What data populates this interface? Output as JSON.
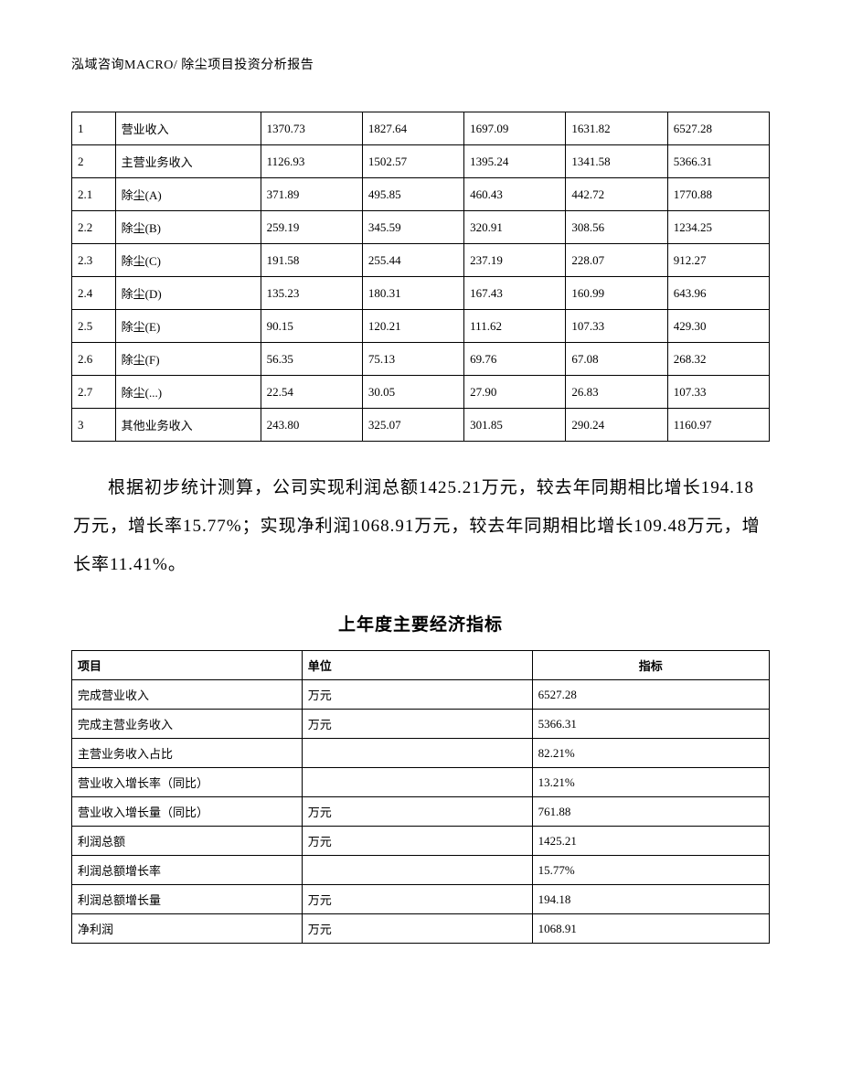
{
  "header": "泓域咨询MACRO/   除尘项目投资分析报告",
  "table1": {
    "rows": [
      [
        "1",
        "营业收入",
        "1370.73",
        "1827.64",
        "1697.09",
        "1631.82",
        "6527.28"
      ],
      [
        "2",
        "主营业务收入",
        "1126.93",
        "1502.57",
        "1395.24",
        "1341.58",
        "5366.31"
      ],
      [
        "2.1",
        "除尘(A)",
        "371.89",
        "495.85",
        "460.43",
        "442.72",
        "1770.88"
      ],
      [
        "2.2",
        "除尘(B)",
        "259.19",
        "345.59",
        "320.91",
        "308.56",
        "1234.25"
      ],
      [
        "2.3",
        "除尘(C)",
        "191.58",
        "255.44",
        "237.19",
        "228.07",
        "912.27"
      ],
      [
        "2.4",
        "除尘(D)",
        "135.23",
        "180.31",
        "167.43",
        "160.99",
        "643.96"
      ],
      [
        "2.5",
        "除尘(E)",
        "90.15",
        "120.21",
        "111.62",
        "107.33",
        "429.30"
      ],
      [
        "2.6",
        "除尘(F)",
        "56.35",
        "75.13",
        "69.76",
        "67.08",
        "268.32"
      ],
      [
        "2.7",
        "除尘(...)",
        "22.54",
        "30.05",
        "27.90",
        "26.83",
        "107.33"
      ],
      [
        "3",
        "其他业务收入",
        "243.80",
        "325.07",
        "301.85",
        "290.24",
        "1160.97"
      ]
    ]
  },
  "paragraph": "根据初步统计测算，公司实现利润总额1425.21万元，较去年同期相比增长194.18万元，增长率15.77%；实现净利润1068.91万元，较去年同期相比增长109.48万元，增长率11.41%。",
  "section_title": "上年度主要经济指标",
  "table2": {
    "headers": [
      "项目",
      "单位",
      "指标"
    ],
    "rows": [
      [
        "完成营业收入",
        "万元",
        "6527.28"
      ],
      [
        "完成主营业务收入",
        "万元",
        "5366.31"
      ],
      [
        "主营业务收入占比",
        "",
        "82.21%"
      ],
      [
        "营业收入增长率（同比）",
        "",
        "13.21%"
      ],
      [
        "营业收入增长量（同比）",
        "万元",
        "761.88"
      ],
      [
        "利润总额",
        "万元",
        "1425.21"
      ],
      [
        "利润总额增长率",
        "",
        "15.77%"
      ],
      [
        "利润总额增长量",
        "万元",
        "194.18"
      ],
      [
        "净利润",
        "万元",
        "1068.91"
      ]
    ]
  }
}
